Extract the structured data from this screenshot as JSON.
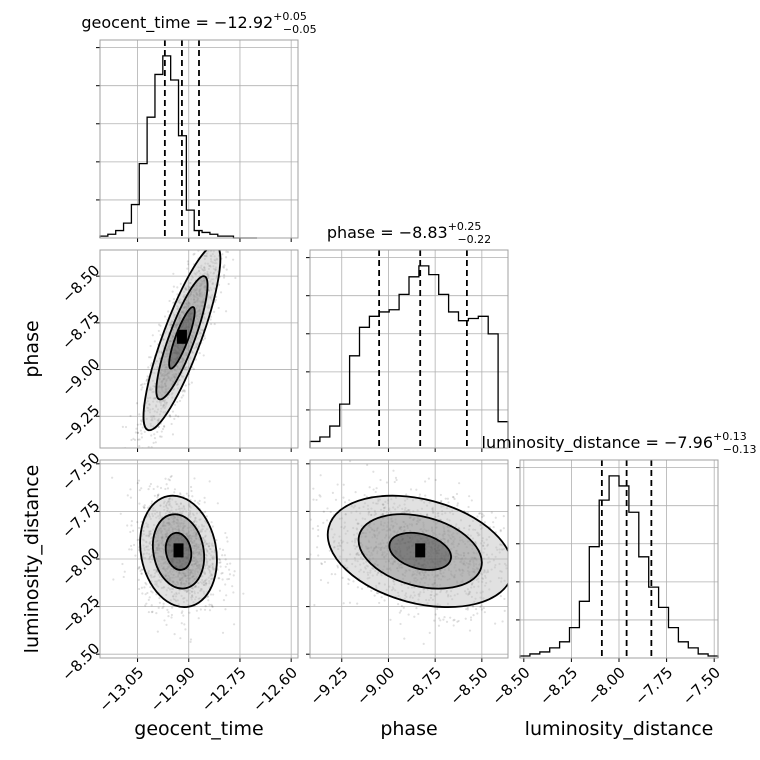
{
  "chart_data": {
    "type": "corner",
    "parameters": [
      "geocent_time",
      "phase",
      "luminosity_distance"
    ],
    "titles": {
      "geocent_time": {
        "prefix": "geocent_time = −12.92",
        "plus": "+0.05",
        "minus": "−0.05"
      },
      "phase": {
        "prefix": "phase = −8.83",
        "plus": "+0.25",
        "minus": "−0.22"
      },
      "luminosity_distance": {
        "prefix": "luminosity_distance = −7.96",
        "plus": "+0.13",
        "minus": "−0.13"
      }
    },
    "axis_labels": {
      "x": [
        "geocent_time",
        "phase",
        "luminosity_distance"
      ],
      "y": [
        "phase",
        "luminosity_distance"
      ]
    },
    "ranges": {
      "geocent_time": [
        -13.16,
        -12.58
      ],
      "phase": [
        -9.42,
        -8.36
      ],
      "luminosity_distance": [
        -8.52,
        -7.48
      ]
    },
    "ticks": {
      "geocent_time": {
        "values": [
          -13.05,
          -12.9,
          -12.75,
          -12.6
        ],
        "labels": [
          "−13.05",
          "−12.90",
          "−12.75",
          "−12.60"
        ]
      },
      "phase": {
        "values": [
          -9.25,
          -9.0,
          -8.75,
          -8.5
        ],
        "labels": [
          "−9.25",
          "−9.00",
          "−8.75",
          "−8.50"
        ]
      },
      "luminosity_distance": {
        "values": [
          -8.5,
          -8.25,
          -8.0,
          -7.75,
          -7.5
        ],
        "labels": [
          "−8.50",
          "−8.25",
          "−8.00",
          "−7.75",
          "−7.50"
        ]
      }
    },
    "quantiles": {
      "geocent_time": [
        -12.97,
        -12.92,
        -12.87
      ],
      "phase": [
        -9.05,
        -8.83,
        -8.58
      ],
      "luminosity_distance": [
        -8.09,
        -7.96,
        -7.83
      ]
    },
    "histograms": {
      "geocent_time": {
        "edges_start": -13.16,
        "bin_width": 0.023,
        "counts": [
          1,
          2,
          4,
          8,
          18,
          40,
          65,
          88,
          98,
          85,
          55,
          15,
          4,
          3,
          2,
          1,
          1,
          0,
          0,
          0
        ]
      },
      "phase": {
        "edges_start": -9.42,
        "bin_width": 0.053,
        "counts": [
          3,
          5,
          10,
          20,
          42,
          55,
          60,
          62,
          63,
          70,
          78,
          83,
          79,
          70,
          62,
          58,
          59,
          60,
          52,
          12
        ]
      },
      "luminosity_distance": {
        "edges_start": -8.52,
        "bin_width": 0.052,
        "counts": [
          1,
          2,
          3,
          5,
          8,
          15,
          28,
          55,
          78,
          90,
          85,
          72,
          50,
          35,
          25,
          15,
          8,
          5,
          2,
          1
        ]
      }
    },
    "joint": {
      "phase_vs_geocent_time": {
        "mean": [
          -12.92,
          -8.83
        ],
        "sd": [
          0.05,
          0.22
        ],
        "rho": 0.85
      },
      "luminosity_distance_vs_geocent_time": {
        "mean": [
          -12.93,
          -7.96
        ],
        "sd": [
          0.05,
          0.13
        ],
        "rho": -0.15
      },
      "luminosity_distance_vs_phase": {
        "mean": [
          -8.83,
          -7.96
        ],
        "sd": [
          0.22,
          0.13
        ],
        "rho": -0.3
      }
    },
    "contour_levels_sigma": [
      0.5,
      1.0,
      1.5
    ],
    "grid": true
  }
}
